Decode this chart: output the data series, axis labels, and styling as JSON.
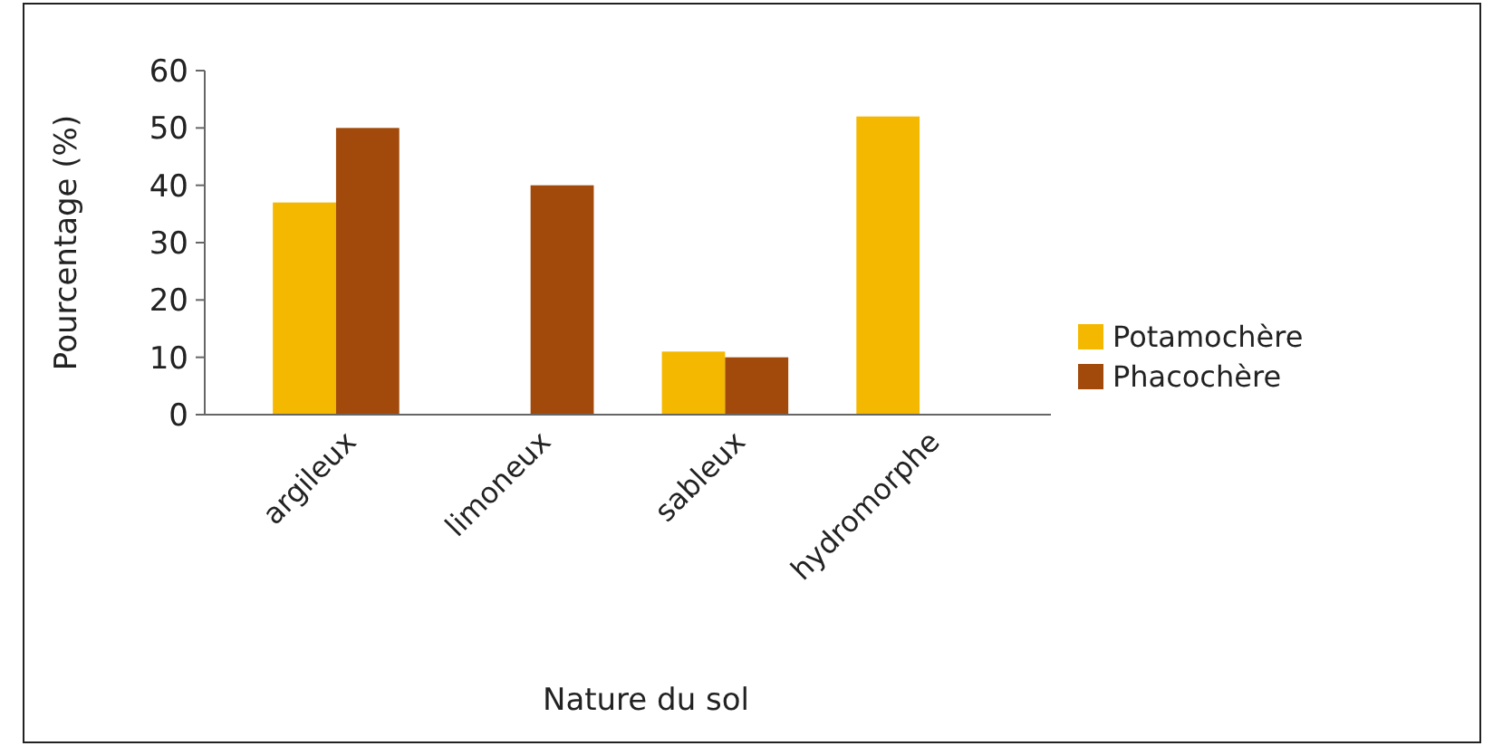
{
  "chart_data": {
    "type": "bar",
    "xlabel": "Nature du sol",
    "ylabel": "Pourcentage (%)",
    "categories": [
      "argileux",
      "limoneux",
      "sableux",
      "hydromorphe"
    ],
    "series": [
      {
        "name": "Potamochère",
        "color": "#f5b800",
        "values": [
          37,
          null,
          11,
          52
        ]
      },
      {
        "name": "Phacochère",
        "color": "#a24a0c",
        "values": [
          50,
          40,
          10,
          null
        ]
      }
    ],
    "ylim": [
      0,
      60
    ],
    "yticks": [
      0,
      10,
      20,
      30,
      40,
      50,
      60
    ],
    "grid": false,
    "legend": "right"
  }
}
